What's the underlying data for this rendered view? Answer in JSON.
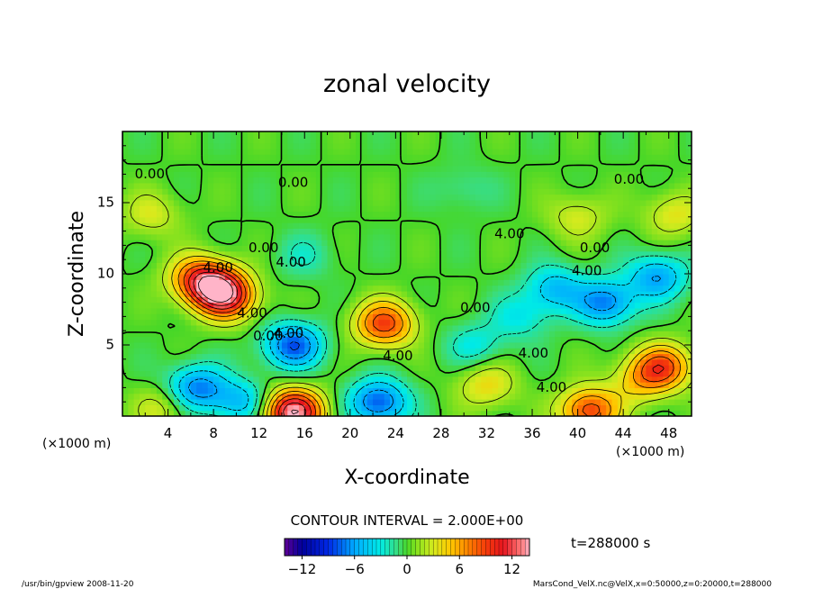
{
  "chart_data": {
    "type": "heatmap",
    "title": "zonal velocity",
    "xlabel": "X-coordinate",
    "ylabel": "Z-coordinate",
    "x_unit": "(×1000 m)",
    "z_unit": "(×1000 m)",
    "xlim": [
      0,
      50
    ],
    "ylim": [
      0,
      20
    ],
    "x_ticks": [
      4,
      8,
      12,
      16,
      20,
      24,
      28,
      32,
      36,
      40,
      44,
      48
    ],
    "y_ticks": [
      5,
      10,
      15
    ],
    "contour_interval_text": "CONTOUR INTERVAL = 2.000E+00",
    "time_label": "t=288000 s",
    "colorbar": {
      "min": -14,
      "max": 14,
      "ticks": [
        -12,
        -6,
        0,
        6,
        12
      ]
    },
    "contour_labels": [
      {
        "text": "0.00",
        "x": 2.4,
        "z": 17.0
      },
      {
        "text": "0.00",
        "x": 15.0,
        "z": 16.4
      },
      {
        "text": "0.00",
        "x": 44.5,
        "z": 16.6
      },
      {
        "text": "4.00",
        "x": 34.0,
        "z": 12.8
      },
      {
        "text": "0.00",
        "x": 12.4,
        "z": 11.8
      },
      {
        "text": "0.00",
        "x": 41.5,
        "z": 11.8
      },
      {
        "text": "4.00",
        "x": 14.8,
        "z": 10.8
      },
      {
        "text": "4.00",
        "x": 8.4,
        "z": 10.4
      },
      {
        "text": "4.00",
        "x": 40.8,
        "z": 10.2
      },
      {
        "text": "0.00",
        "x": 31.0,
        "z": 7.6
      },
      {
        "text": "4.00",
        "x": 11.4,
        "z": 7.2
      },
      {
        "text": "0.00",
        "x": 12.8,
        "z": 5.6
      },
      {
        "text": "4.00",
        "x": 14.6,
        "z": 5.8
      },
      {
        "text": "4.00",
        "x": 24.2,
        "z": 4.2
      },
      {
        "text": "4.00",
        "x": 36.1,
        "z": 4.4
      },
      {
        "text": "4.00",
        "x": 37.7,
        "z": 2.0
      }
    ],
    "features": [
      {
        "x": 8.2,
        "z": 9.0,
        "value": 11.0
      },
      {
        "x": 6.5,
        "z": 9.8,
        "value": 6.0
      },
      {
        "x": 9.5,
        "z": 8.2,
        "value": 6.0
      },
      {
        "x": 23.0,
        "z": 6.5,
        "value": 9.0
      },
      {
        "x": 15.0,
        "z": 0.3,
        "value": 14.0
      },
      {
        "x": 41.0,
        "z": 0.4,
        "value": 9.0
      },
      {
        "x": 47.5,
        "z": 3.5,
        "value": 8.0
      },
      {
        "x": 32.0,
        "z": 2.2,
        "value": 4.0
      },
      {
        "x": 45.5,
        "z": 2.5,
        "value": 4.0
      },
      {
        "x": 2.5,
        "z": 14.2,
        "value": 3.0
      },
      {
        "x": 40.0,
        "z": 14.0,
        "value": 3.0
      },
      {
        "x": 48.5,
        "z": 14.2,
        "value": 3.5
      },
      {
        "x": 3.5,
        "z": 0.6,
        "value": 3.0
      },
      {
        "x": 15.0,
        "z": 5.0,
        "value": -8.0
      },
      {
        "x": 6.5,
        "z": 2.0,
        "value": -7.0
      },
      {
        "x": 10.5,
        "z": 1.0,
        "value": -5.0
      },
      {
        "x": 22.5,
        "z": 1.0,
        "value": -8.0
      },
      {
        "x": 42.5,
        "z": 8.0,
        "value": -7.0
      },
      {
        "x": 38.0,
        "z": 9.0,
        "value": -5.0
      },
      {
        "x": 47.0,
        "z": 9.8,
        "value": -6.0
      },
      {
        "x": 31.0,
        "z": 5.0,
        "value": -3.0
      },
      {
        "x": 35.0,
        "z": 7.0,
        "value": -3.0
      },
      {
        "x": 30.0,
        "z": 16.0,
        "value": -1.5
      },
      {
        "x": 16.0,
        "z": 11.3,
        "value": -2.0
      }
    ]
  },
  "footer": {
    "left": "/usr/bin/gpview   2008-11-20",
    "right": "MarsCond_VelX.nc@VelX,x=0:50000,z=0:20000,t=288000"
  }
}
